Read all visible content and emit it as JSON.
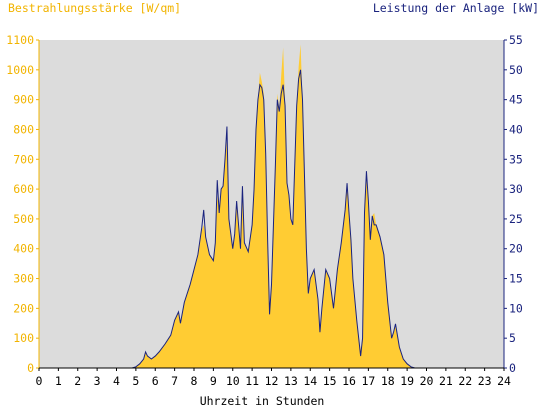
{
  "chart_data": {
    "type": "area",
    "left_axis_title": "Bestrahlungsstärke [W/qm]",
    "right_axis_title": "Leistung der Anlage [kW]",
    "xlabel": "Uhrzeit in Stunden",
    "x_ticks": [
      "0",
      "1",
      "2",
      "3",
      "4",
      "5",
      "6",
      "7",
      "8",
      "9",
      "10",
      "11",
      "12",
      "13",
      "14",
      "15",
      "16",
      "17",
      "18",
      "19",
      "20",
      "21",
      "22",
      "23",
      "24"
    ],
    "xlim": [
      0,
      24
    ],
    "ylim_left": [
      0,
      1100
    ],
    "ylim_right": [
      0,
      55
    ],
    "y_ticks_left": [
      "0",
      "100",
      "200",
      "300",
      "400",
      "500",
      "600",
      "700",
      "800",
      "900",
      "1000",
      "1100"
    ],
    "y_ticks_right": [
      "0",
      "5",
      "10",
      "15",
      "20",
      "25",
      "30",
      "35",
      "40",
      "45",
      "50",
      "55"
    ],
    "series": [
      {
        "axis": "left",
        "style": "filled-area",
        "color": "#ffcc33",
        "points": [
          [
            0,
            0
          ],
          [
            4.8,
            0
          ],
          [
            5.0,
            5
          ],
          [
            5.2,
            15
          ],
          [
            5.4,
            30
          ],
          [
            5.5,
            55
          ],
          [
            5.6,
            40
          ],
          [
            5.8,
            30
          ],
          [
            6.0,
            40
          ],
          [
            6.2,
            55
          ],
          [
            6.5,
            80
          ],
          [
            6.8,
            110
          ],
          [
            7.0,
            160
          ],
          [
            7.2,
            190
          ],
          [
            7.3,
            150
          ],
          [
            7.5,
            220
          ],
          [
            7.8,
            280
          ],
          [
            8.0,
            330
          ],
          [
            8.2,
            380
          ],
          [
            8.4,
            460
          ],
          [
            8.5,
            480
          ],
          [
            8.6,
            440
          ],
          [
            8.8,
            380
          ],
          [
            9.0,
            360
          ],
          [
            9.1,
            420
          ],
          [
            9.2,
            580
          ],
          [
            9.3,
            520
          ],
          [
            9.4,
            600
          ],
          [
            9.5,
            610
          ],
          [
            9.6,
            700
          ],
          [
            9.7,
            760
          ],
          [
            9.8,
            500
          ],
          [
            10.0,
            400
          ],
          [
            10.1,
            450
          ],
          [
            10.2,
            560
          ],
          [
            10.3,
            480
          ],
          [
            10.4,
            400
          ],
          [
            10.5,
            600
          ],
          [
            10.6,
            420
          ],
          [
            10.8,
            390
          ],
          [
            11.0,
            480
          ],
          [
            11.1,
            600
          ],
          [
            11.2,
            800
          ],
          [
            11.3,
            900
          ],
          [
            11.4,
            990
          ],
          [
            11.5,
            960
          ],
          [
            11.6,
            920
          ],
          [
            11.7,
            720
          ],
          [
            11.8,
            430
          ],
          [
            11.9,
            180
          ],
          [
            12.0,
            280
          ],
          [
            12.2,
            680
          ],
          [
            12.3,
            920
          ],
          [
            12.4,
            870
          ],
          [
            12.5,
            980
          ],
          [
            12.6,
            1075
          ],
          [
            12.7,
            890
          ],
          [
            12.8,
            620
          ],
          [
            12.9,
            580
          ],
          [
            13.0,
            500
          ],
          [
            13.1,
            480
          ],
          [
            13.2,
            680
          ],
          [
            13.3,
            880
          ],
          [
            13.4,
            1010
          ],
          [
            13.5,
            1085
          ],
          [
            13.6,
            900
          ],
          [
            13.7,
            650
          ],
          [
            13.8,
            400
          ],
          [
            13.9,
            250
          ],
          [
            14.0,
            300
          ],
          [
            14.2,
            330
          ],
          [
            14.4,
            230
          ],
          [
            14.5,
            120
          ],
          [
            14.6,
            200
          ],
          [
            14.8,
            330
          ],
          [
            15.0,
            300
          ],
          [
            15.2,
            200
          ],
          [
            15.4,
            330
          ],
          [
            15.6,
            420
          ],
          [
            15.8,
            530
          ],
          [
            15.9,
            600
          ],
          [
            16.0,
            520
          ],
          [
            16.1,
            430
          ],
          [
            16.2,
            300
          ],
          [
            16.4,
            160
          ],
          [
            16.6,
            60
          ],
          [
            16.7,
            100
          ],
          [
            16.8,
            520
          ],
          [
            16.9,
            640
          ],
          [
            17.0,
            560
          ],
          [
            17.1,
            430
          ],
          [
            17.2,
            510
          ],
          [
            17.3,
            520
          ],
          [
            17.4,
            480
          ],
          [
            17.5,
            460
          ],
          [
            17.6,
            440
          ],
          [
            17.8,
            380
          ],
          [
            18.0,
            220
          ],
          [
            18.2,
            100
          ],
          [
            18.3,
            120
          ],
          [
            18.4,
            140
          ],
          [
            18.6,
            70
          ],
          [
            18.8,
            30
          ],
          [
            19.0,
            15
          ],
          [
            19.2,
            5
          ],
          [
            19.4,
            0
          ],
          [
            24,
            0
          ]
        ]
      },
      {
        "axis": "right",
        "style": "line",
        "color": "#1a237e",
        "points": [
          [
            0,
            0
          ],
          [
            4.8,
            0
          ],
          [
            5.0,
            0.2
          ],
          [
            5.2,
            0.7
          ],
          [
            5.4,
            1.5
          ],
          [
            5.5,
            2.7
          ],
          [
            5.6,
            2
          ],
          [
            5.8,
            1.5
          ],
          [
            6.0,
            2
          ],
          [
            6.2,
            2.7
          ],
          [
            6.5,
            4
          ],
          [
            6.8,
            5.5
          ],
          [
            7.0,
            8
          ],
          [
            7.2,
            9.4
          ],
          [
            7.3,
            7.5
          ],
          [
            7.5,
            11
          ],
          [
            7.8,
            14
          ],
          [
            8.0,
            16.5
          ],
          [
            8.2,
            19
          ],
          [
            8.4,
            23.5
          ],
          [
            8.5,
            26.5
          ],
          [
            8.6,
            22
          ],
          [
            8.8,
            19
          ],
          [
            9.0,
            18
          ],
          [
            9.1,
            21
          ],
          [
            9.2,
            31.5
          ],
          [
            9.3,
            26
          ],
          [
            9.4,
            30
          ],
          [
            9.5,
            30.5
          ],
          [
            9.6,
            35
          ],
          [
            9.7,
            40.5
          ],
          [
            9.8,
            25
          ],
          [
            10.0,
            20
          ],
          [
            10.1,
            22.5
          ],
          [
            10.2,
            28
          ],
          [
            10.3,
            24
          ],
          [
            10.4,
            20
          ],
          [
            10.5,
            30.5
          ],
          [
            10.6,
            21
          ],
          [
            10.8,
            19.5
          ],
          [
            11.0,
            24
          ],
          [
            11.1,
            30
          ],
          [
            11.2,
            40
          ],
          [
            11.3,
            45
          ],
          [
            11.4,
            47.5
          ],
          [
            11.5,
            47
          ],
          [
            11.6,
            45
          ],
          [
            11.7,
            36
          ],
          [
            11.8,
            21.5
          ],
          [
            11.9,
            9
          ],
          [
            12.0,
            14
          ],
          [
            12.2,
            34
          ],
          [
            12.3,
            45
          ],
          [
            12.4,
            43
          ],
          [
            12.5,
            46
          ],
          [
            12.6,
            47.5
          ],
          [
            12.7,
            44
          ],
          [
            12.8,
            31
          ],
          [
            12.9,
            29
          ],
          [
            13.0,
            25
          ],
          [
            13.1,
            24
          ],
          [
            13.2,
            34
          ],
          [
            13.3,
            44
          ],
          [
            13.4,
            48.5
          ],
          [
            13.5,
            50
          ],
          [
            13.6,
            45
          ],
          [
            13.7,
            32.5
          ],
          [
            13.8,
            20
          ],
          [
            13.9,
            12.5
          ],
          [
            14.0,
            15
          ],
          [
            14.2,
            16.5
          ],
          [
            14.4,
            11.5
          ],
          [
            14.5,
            6
          ],
          [
            14.6,
            10
          ],
          [
            14.8,
            16.5
          ],
          [
            15.0,
            15
          ],
          [
            15.2,
            10
          ],
          [
            15.4,
            16.5
          ],
          [
            15.6,
            21
          ],
          [
            15.8,
            26.5
          ],
          [
            15.9,
            31
          ],
          [
            16.0,
            26
          ],
          [
            16.1,
            21.5
          ],
          [
            16.2,
            15
          ],
          [
            16.4,
            8
          ],
          [
            16.6,
            2
          ],
          [
            16.7,
            5
          ],
          [
            16.8,
            26
          ],
          [
            16.9,
            33
          ],
          [
            17.0,
            28
          ],
          [
            17.1,
            21.5
          ],
          [
            17.2,
            25.5
          ],
          [
            17.3,
            24
          ],
          [
            17.4,
            24
          ],
          [
            17.5,
            23
          ],
          [
            17.6,
            22
          ],
          [
            17.8,
            19
          ],
          [
            18.0,
            11
          ],
          [
            18.2,
            5
          ],
          [
            18.3,
            6
          ],
          [
            18.4,
            7.4
          ],
          [
            18.6,
            3.5
          ],
          [
            18.8,
            1.5
          ],
          [
            19.0,
            0.7
          ],
          [
            19.2,
            0.2
          ],
          [
            19.4,
            0
          ],
          [
            24,
            0
          ]
        ]
      }
    ],
    "grid": false,
    "plot_background": "#dcdcdc",
    "left_axis_color": "#f2b400",
    "right_axis_color": "#1a237e",
    "x_axis_color": "#000000"
  }
}
